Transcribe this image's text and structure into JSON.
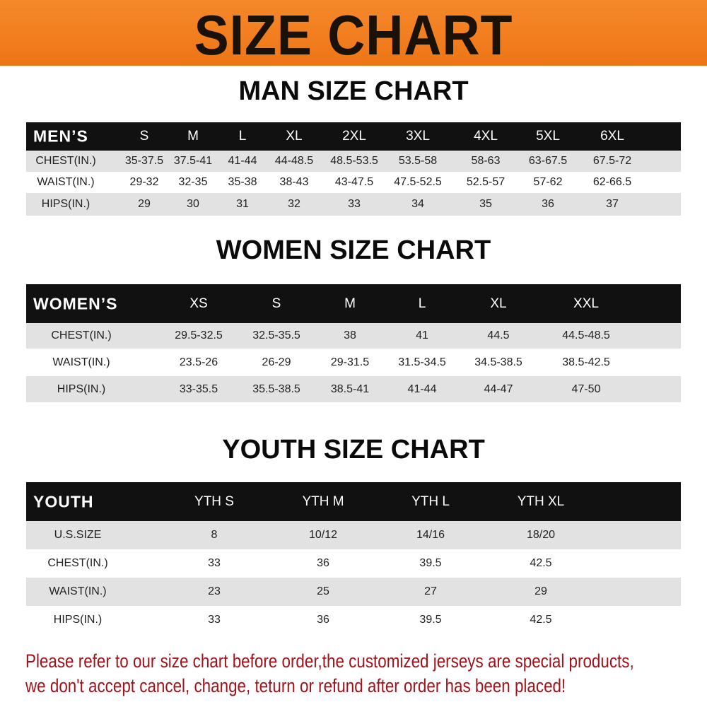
{
  "banner": {
    "title": "SIZE CHART"
  },
  "men": {
    "title": "MAN SIZE CHART",
    "header": [
      "MEN’S",
      "S",
      "M",
      "L",
      "XL",
      "2XL",
      "3XL",
      "4XL",
      "5XL",
      "6XL"
    ],
    "rows": [
      [
        "CHEST(IN.)",
        "35-37.5",
        "37.5-41",
        "41-44",
        "44-48.5",
        "48.5-53.5",
        "53.5-58",
        "58-63",
        "63-67.5",
        "67.5-72"
      ],
      [
        "WAIST(IN.)",
        "29-32",
        "32-35",
        "35-38",
        "38-43",
        "43-47.5",
        "47.5-52.5",
        "52.5-57",
        "57-62",
        "62-66.5"
      ],
      [
        "HIPS(IN.)",
        "29",
        "30",
        "31",
        "32",
        "33",
        "34",
        "35",
        "36",
        "37"
      ]
    ]
  },
  "women": {
    "title": "WOMEN SIZE CHART",
    "header": [
      "WOMEN’S",
      "XS",
      "S",
      "M",
      "L",
      "XL",
      "XXL"
    ],
    "rows": [
      [
        "CHEST(IN.)",
        "29.5-32.5",
        "32.5-35.5",
        "38",
        "41",
        "44.5",
        "44.5-48.5"
      ],
      [
        "WAIST(IN.)",
        "23.5-26",
        "26-29",
        "29-31.5",
        "31.5-34.5",
        "34.5-38.5",
        "38.5-42.5"
      ],
      [
        "HIPS(IN.)",
        "33-35.5",
        "35.5-38.5",
        "38.5-41",
        "41-44",
        "44-47",
        "47-50"
      ]
    ]
  },
  "youth": {
    "title": "YOUTH SIZE CHART",
    "header": [
      "YOUTH",
      "YTH S",
      "YTH M",
      "YTH L",
      "YTH XL"
    ],
    "rows": [
      [
        "U.S.SIZE",
        "8",
        "10/12",
        "14/16",
        "18/20"
      ],
      [
        "CHEST(IN.)",
        "33",
        "36",
        "39.5",
        "42.5"
      ],
      [
        "WAIST(IN.)",
        "23",
        "25",
        "27",
        "29"
      ],
      [
        "HIPS(IN.)",
        "33",
        "36",
        "39.5",
        "42.5"
      ]
    ]
  },
  "notice": {
    "line1": "Please refer to our size chart before order,the customized jerseys are special products,",
    "line2": "we don't accept cancel, change, teturn or refund after order has been placed!"
  },
  "colors": {
    "banner": "#ee7516",
    "header_row": "#111111",
    "notice_text": "#a3121a"
  }
}
